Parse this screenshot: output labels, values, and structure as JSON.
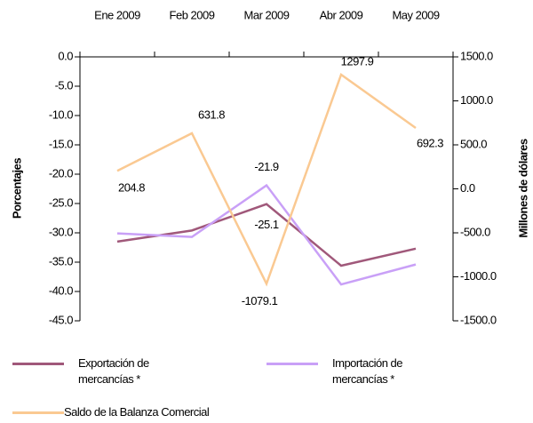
{
  "chart_data": {
    "type": "line",
    "categories": [
      "Ene 2009",
      "Feb 2009",
      "Mar 2009",
      "Abr 2009",
      "May 2009"
    ],
    "ylabel": "Porcentajes",
    "y2label": "Millones de dólares",
    "ylim": [
      -45,
      0
    ],
    "yticks": [
      {
        "value": 0,
        "label": "0.0"
      },
      {
        "value": -5,
        "label": "-5.0"
      },
      {
        "value": -10,
        "label": "-10.0"
      },
      {
        "value": -15,
        "label": "-15.0"
      },
      {
        "value": -20,
        "label": "-20.0"
      },
      {
        "value": -25,
        "label": "-25.0"
      },
      {
        "value": -30,
        "label": "-30.0"
      },
      {
        "value": -35,
        "label": "-35.0"
      },
      {
        "value": -40,
        "label": "-40.0"
      },
      {
        "value": -45,
        "label": "-45.0"
      }
    ],
    "y2lim": [
      -1500,
      1500
    ],
    "y2ticks": [
      {
        "value": 1500,
        "label": "1500.0"
      },
      {
        "value": 1000,
        "label": "1000.0"
      },
      {
        "value": 500,
        "label": "500.0"
      },
      {
        "value": 0,
        "label": "0.0"
      },
      {
        "value": -500,
        "label": "-500.0"
      },
      {
        "value": -1000,
        "label": "-1000.0"
      },
      {
        "value": -1500,
        "label": "-1500.0"
      }
    ],
    "series": [
      {
        "name": "Exportación de mercancías *",
        "color": "#a0587a",
        "values": [
          -31.5,
          -29.6,
          -25.1,
          -35.6,
          -32.7
        ],
        "value_labels": [
          null,
          null,
          "-25.1",
          null,
          null
        ]
      },
      {
        "name": "Importación de mercancías *",
        "color": "#c9a0f7",
        "values": [
          -30.1,
          -30.7,
          -21.9,
          -38.8,
          -35.4
        ],
        "value_labels": [
          null,
          null,
          "-21.9",
          null,
          null
        ]
      },
      {
        "name": "Saldo de la Balanza Comercial",
        "color": "#fac992",
        "axis": "y2",
        "values": [
          204.8,
          631.8,
          -1079.1,
          1297.9,
          692.3
        ],
        "value_labels": [
          "204.8",
          "631.8",
          "-1079.1",
          "1297.9",
          "692.3"
        ]
      }
    ]
  }
}
